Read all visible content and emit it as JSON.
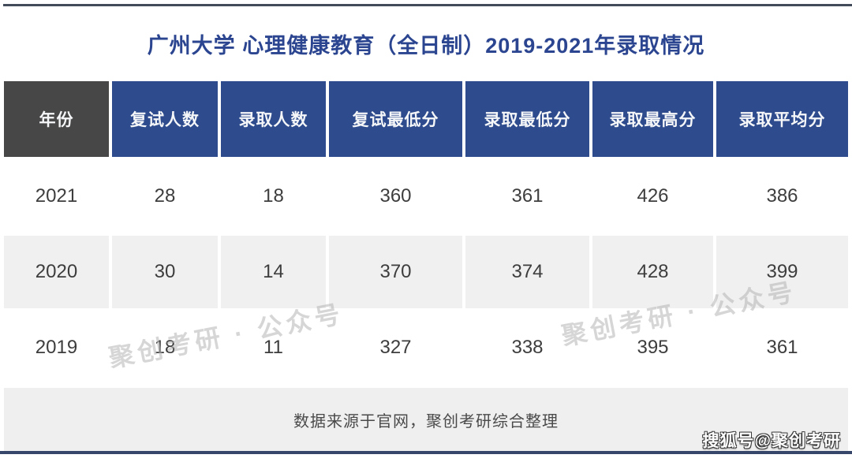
{
  "title": "广州大学 心理健康教育（全日制）2019-2021年录取情况",
  "table": {
    "header": [
      "年份",
      "复试人数",
      "录取人数",
      "复试最低分",
      "录取最低分",
      "录取最高分",
      "录取平均分"
    ],
    "rows": [
      [
        "2021",
        "28",
        "18",
        "360",
        "361",
        "426",
        "386"
      ],
      [
        "2020",
        "30",
        "14",
        "370",
        "374",
        "428",
        "399"
      ],
      [
        "2019",
        "18",
        "11",
        "327",
        "338",
        "395",
        "361"
      ]
    ]
  },
  "footer": {
    "source_note": "数据来源于官网，聚创考研综合整理"
  },
  "watermark": {
    "text": "聚创考研 · 公众号"
  },
  "sohu": {
    "label": "搜狐号@聚创考研"
  },
  "colors": {
    "title_blue": "#2b4590",
    "header_blue": "#2d4b8d",
    "year_header_gray": "#474747",
    "alt_row_gray": "#f0f0f0",
    "footer_band_gray": "#efefef",
    "top_border": "#414b5a",
    "bottom_border": "#36466b"
  },
  "chart_data": {
    "type": "table",
    "title": "广州大学 心理健康教育（全日制）2019-2021年录取情况",
    "columns": [
      "年份",
      "复试人数",
      "录取人数",
      "复试最低分",
      "录取最低分",
      "录取最高分",
      "录取平均分"
    ],
    "rows": [
      [
        2021,
        28,
        18,
        360,
        361,
        426,
        386
      ],
      [
        2020,
        30,
        14,
        370,
        374,
        428,
        399
      ],
      [
        2019,
        18,
        11,
        327,
        338,
        395,
        361
      ]
    ],
    "footnote": "数据来源于官网，聚创考研综合整理"
  }
}
